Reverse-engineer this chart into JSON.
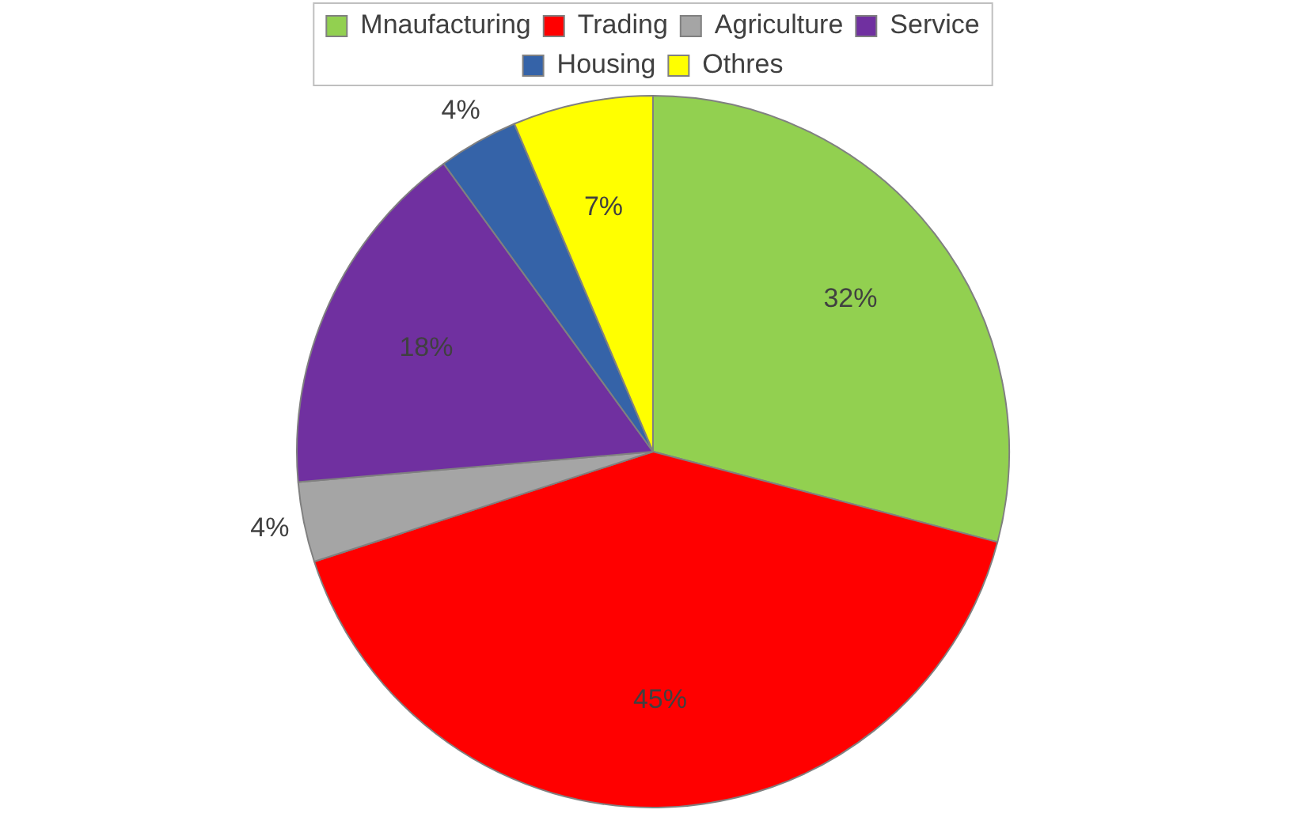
{
  "chart_data": {
    "type": "pie",
    "categories": [
      "Mnaufacturing",
      "Trading",
      "Agriculture",
      "Service",
      "Housing",
      "Othres"
    ],
    "values": [
      32,
      45,
      4,
      18,
      4,
      7
    ],
    "colors": [
      "#92d050",
      "#ff0000",
      "#a5a5a5",
      "#7030a0",
      "#3563a8",
      "#ffff00"
    ],
    "value_labels": [
      "32%",
      "45%",
      "4%",
      "18%",
      "4%",
      "7%"
    ],
    "legend": "top"
  }
}
